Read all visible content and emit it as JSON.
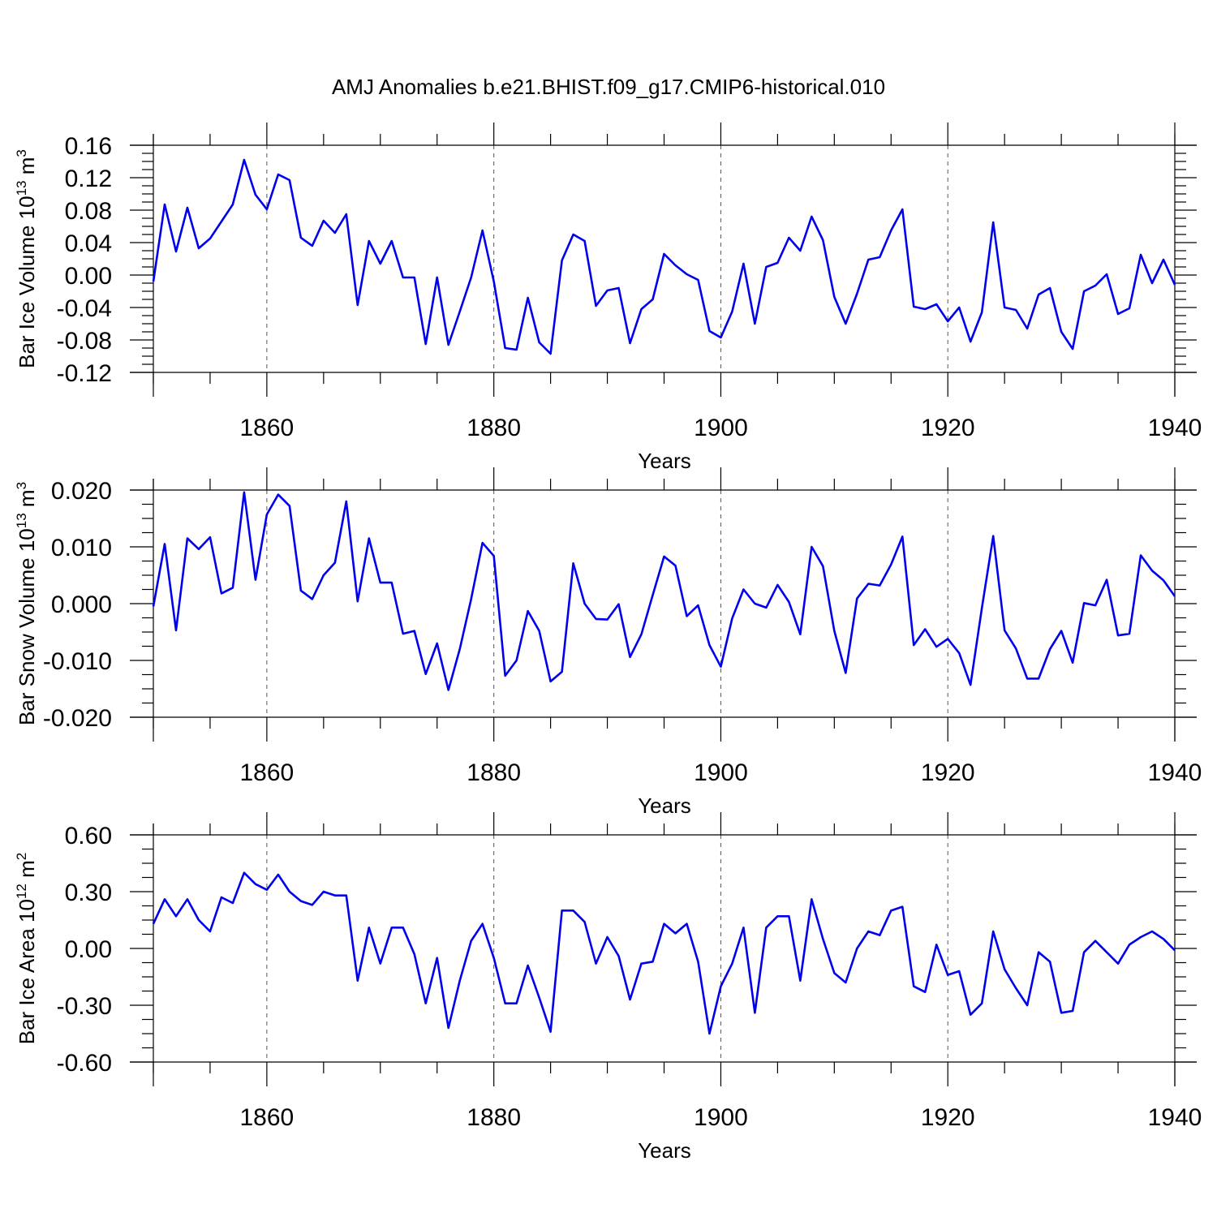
{
  "colors": {
    "series": "#0000ee",
    "axis": "#000000",
    "grid": "#555555"
  },
  "chart_data": [
    {
      "type": "line",
      "title": "AMJ Anomalies b.e21.BHIST.f09_g17.CMIP6-historical.010",
      "xlabel": "Years",
      "ylabel_main": "Bar Ice Volume 10",
      "ylabel_exponent": "13",
      "ylabel_unit": "m",
      "ylabel_unit_exponent": "3",
      "xlim": [
        1850,
        1940
      ],
      "ylim": [
        -0.12,
        0.16
      ],
      "yticks": [
        "0.16",
        "0.12",
        "0.08",
        "0.04",
        "0.00",
        "-0.04",
        "-0.08",
        "-0.12"
      ],
      "ytick_values": [
        0.16,
        0.12,
        0.08,
        0.04,
        0.0,
        -0.04,
        -0.08,
        -0.12
      ],
      "xticks": [
        "1860",
        "1880",
        "1900",
        "1920",
        "1940"
      ],
      "xtick_values": [
        1860,
        1880,
        1900,
        1920,
        1940
      ],
      "x_start": 1850,
      "values": [
        -0.008,
        0.087,
        0.029,
        0.083,
        0.033,
        0.045,
        0.066,
        0.087,
        0.142,
        0.099,
        0.081,
        0.124,
        0.117,
        0.046,
        0.036,
        0.067,
        0.052,
        0.075,
        -0.037,
        0.042,
        0.014,
        0.042,
        -0.003,
        -0.003,
        -0.085,
        -0.003,
        -0.086,
        -0.045,
        -0.003,
        0.055,
        -0.008,
        -0.09,
        -0.092,
        -0.028,
        -0.083,
        -0.097,
        0.018,
        0.05,
        0.042,
        -0.038,
        -0.019,
        -0.016,
        -0.084,
        -0.042,
        -0.03,
        0.026,
        0.012,
        0.001,
        -0.006,
        -0.069,
        -0.077,
        -0.045,
        0.014,
        -0.06,
        0.01,
        0.015,
        0.046,
        0.03,
        0.072,
        0.043,
        -0.027,
        -0.06,
        -0.023,
        0.019,
        0.022,
        0.055,
        0.081,
        -0.039,
        -0.042,
        -0.036,
        -0.057,
        -0.04,
        -0.082,
        -0.046,
        0.065,
        -0.04,
        -0.043,
        -0.066,
        -0.024,
        -0.016,
        -0.07,
        -0.091,
        -0.02,
        -0.013,
        0.001,
        -0.048,
        -0.041,
        0.025,
        -0.01,
        0.019,
        -0.012
      ]
    },
    {
      "type": "line",
      "xlabel": "Years",
      "ylabel_main": "Bar Snow Volume 10",
      "ylabel_exponent": "13",
      "ylabel_unit": "m",
      "ylabel_unit_exponent": "3",
      "xlim": [
        1850,
        1940
      ],
      "ylim": [
        -0.02,
        0.02
      ],
      "yticks": [
        "0.020",
        "0.010",
        "0.000",
        "-0.010",
        "-0.020"
      ],
      "ytick_values": [
        0.02,
        0.01,
        0.0,
        -0.01,
        -0.02
      ],
      "xticks": [
        "1860",
        "1880",
        "1900",
        "1920",
        "1940"
      ],
      "xtick_values": [
        1860,
        1880,
        1900,
        1920,
        1940
      ],
      "x_start": 1850,
      "values": [
        -0.0005,
        0.0105,
        -0.0047,
        0.0115,
        0.0096,
        0.0117,
        0.0018,
        0.0028,
        0.0196,
        0.0042,
        0.0157,
        0.0192,
        0.0172,
        0.0023,
        0.0008,
        0.005,
        0.0072,
        0.018,
        0.0004,
        0.0115,
        0.0037,
        0.0037,
        -0.0053,
        -0.0048,
        -0.0124,
        -0.007,
        -0.0152,
        -0.008,
        0.0008,
        0.0107,
        0.0084,
        -0.0127,
        -0.01,
        -0.0013,
        -0.0048,
        -0.0137,
        -0.012,
        0.0071,
        0.0,
        -0.0027,
        -0.0028,
        -0.0001,
        -0.0094,
        -0.0054,
        0.0015,
        0.0083,
        0.0067,
        -0.0022,
        -0.0003,
        -0.0073,
        -0.0111,
        -0.0026,
        0.0025,
        0.0,
        -0.0007,
        0.0033,
        0.0003,
        -0.0054,
        0.01,
        0.0066,
        -0.0048,
        -0.0122,
        0.0009,
        0.0035,
        0.0032,
        0.0069,
        0.0118,
        -0.0073,
        -0.0045,
        -0.0076,
        -0.0062,
        -0.0087,
        -0.0143,
        -0.0008,
        0.0119,
        -0.0047,
        -0.0079,
        -0.0132,
        -0.0132,
        -0.008,
        -0.0048,
        -0.0104,
        0.0001,
        -0.0003,
        0.0042,
        -0.0056,
        -0.0053,
        0.0085,
        0.0058,
        0.0041,
        0.0013
      ]
    },
    {
      "type": "line",
      "xlabel": "Years",
      "ylabel_main": "Bar Ice Area 10",
      "ylabel_exponent": "12",
      "ylabel_unit": "m",
      "ylabel_unit_exponent": "2",
      "xlim": [
        1850,
        1940
      ],
      "ylim": [
        -0.6,
        0.6
      ],
      "yticks": [
        "0.60",
        "0.30",
        "0.00",
        "-0.30",
        "-0.60"
      ],
      "ytick_values": [
        0.6,
        0.3,
        0.0,
        -0.3,
        -0.6
      ],
      "xticks": [
        "1860",
        "1880",
        "1900",
        "1920",
        "1940"
      ],
      "xtick_values": [
        1860,
        1880,
        1900,
        1920,
        1940
      ],
      "x_start": 1850,
      "values": [
        0.13,
        0.26,
        0.17,
        0.26,
        0.15,
        0.09,
        0.27,
        0.24,
        0.4,
        0.34,
        0.31,
        0.39,
        0.3,
        0.25,
        0.23,
        0.3,
        0.28,
        0.28,
        -0.17,
        0.11,
        -0.08,
        0.11,
        0.11,
        -0.03,
        -0.29,
        -0.05,
        -0.42,
        -0.17,
        0.04,
        0.13,
        -0.05,
        -0.29,
        -0.29,
        -0.09,
        -0.26,
        -0.44,
        0.2,
        0.2,
        0.14,
        -0.08,
        0.06,
        -0.04,
        -0.27,
        -0.08,
        -0.07,
        0.13,
        0.08,
        0.13,
        -0.07,
        -0.45,
        -0.2,
        -0.08,
        0.11,
        -0.34,
        0.11,
        0.17,
        0.17,
        -0.17,
        0.26,
        0.05,
        -0.13,
        -0.18,
        0.0,
        0.09,
        0.07,
        0.2,
        0.22,
        -0.2,
        -0.23,
        0.02,
        -0.14,
        -0.12,
        -0.35,
        -0.29,
        0.09,
        -0.11,
        -0.21,
        -0.3,
        -0.02,
        -0.07,
        -0.34,
        -0.33,
        -0.02,
        0.04,
        -0.02,
        -0.08,
        0.02,
        0.06,
        0.09,
        0.05,
        -0.01
      ]
    }
  ]
}
